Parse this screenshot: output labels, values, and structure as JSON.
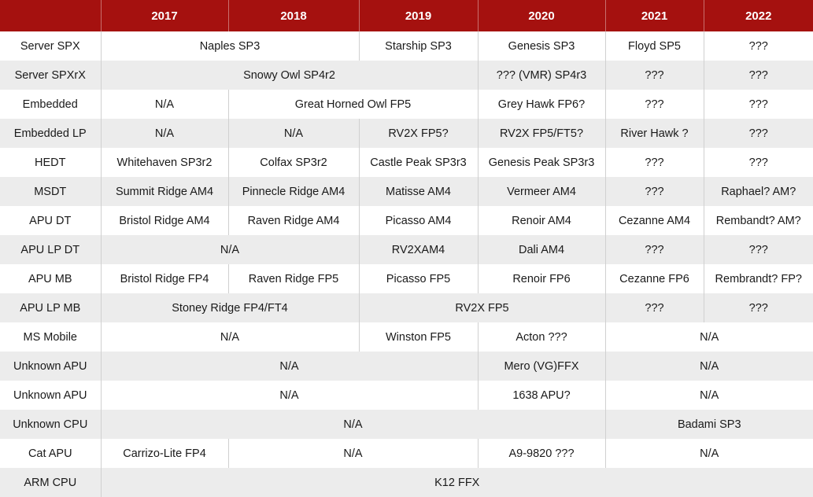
{
  "header": {
    "corner": "",
    "years": [
      "2017",
      "2018",
      "2019",
      "2020",
      "2021",
      "2022"
    ]
  },
  "rows": [
    {
      "label": "Server SPX",
      "cells": [
        "Naples SP3",
        "Starship SP3",
        "Genesis SP3",
        "Floyd SP5",
        "???"
      ]
    },
    {
      "label": "Server SPXrX",
      "cells": [
        "Snowy Owl SP4r2",
        "??? (VMR) SP4r3",
        "???",
        "???"
      ]
    },
    {
      "label": "Embedded",
      "cells": [
        "N/A",
        "Great Horned Owl FP5",
        "Grey Hawk FP6?",
        "???",
        "???"
      ]
    },
    {
      "label": "Embedded LP",
      "cells": [
        "N/A",
        "N/A",
        "RV2X FP5?",
        "RV2X FP5/FT5?",
        "River Hawk ?",
        "???"
      ]
    },
    {
      "label": "HEDT",
      "cells": [
        "Whitehaven SP3r2",
        "Colfax SP3r2",
        "Castle Peak SP3r3",
        "Genesis Peak SP3r3",
        "???",
        "???"
      ]
    },
    {
      "label": "MSDT",
      "cells": [
        "Summit Ridge AM4",
        "Pinnecle Ridge AM4",
        "Matisse AM4",
        "Vermeer AM4",
        "???",
        "Raphael? AM?"
      ]
    },
    {
      "label": "APU DT",
      "cells": [
        "Bristol Ridge AM4",
        "Raven Ridge AM4",
        "Picasso AM4",
        "Renoir AM4",
        "Cezanne AM4",
        "Rembandt? AM?"
      ]
    },
    {
      "label": "APU LP DT",
      "cells": [
        "N/A",
        "RV2XAM4",
        "Dali AM4",
        "???",
        "???"
      ]
    },
    {
      "label": "APU MB",
      "cells": [
        "Bristol Ridge FP4",
        "Raven Ridge FP5",
        "Picasso FP5",
        "Renoir FP6",
        "Cezanne FP6",
        "Rembrandt? FP?"
      ]
    },
    {
      "label": "APU LP MB",
      "cells": [
        "Stoney Ridge FP4/FT4",
        "RV2X FP5",
        "???",
        "???"
      ]
    },
    {
      "label": "MS Mobile",
      "cells": [
        "N/A",
        "Winston FP5",
        "Acton ???",
        "N/A"
      ]
    },
    {
      "label": "Unknown APU",
      "cells": [
        "N/A",
        "Mero (VG)FFX",
        "N/A"
      ]
    },
    {
      "label": "Unknown APU",
      "cells": [
        "N/A",
        "1638 APU?",
        "N/A"
      ]
    },
    {
      "label": "Unknown CPU",
      "cells": [
        "N/A",
        "Badami SP3"
      ]
    },
    {
      "label": "Cat APU",
      "cells": [
        "Carrizo-Lite FP4",
        "N/A",
        "A9-9820 ???",
        "N/A"
      ]
    },
    {
      "label": "ARM CPU",
      "cells": [
        "K12 FFX"
      ]
    }
  ]
}
